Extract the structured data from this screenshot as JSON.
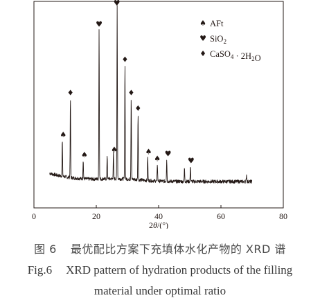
{
  "chart_data": {
    "type": "line",
    "title": "",
    "xlabel": "2θ/(°)",
    "ylabel": "",
    "xlim": [
      0,
      80
    ],
    "xticks": [
      0,
      20,
      40,
      60,
      80
    ],
    "grid": false,
    "legend_position": "top-right",
    "legend": [
      {
        "symbol": "spade",
        "label": "AFt"
      },
      {
        "symbol": "heart",
        "label": "SiO2"
      },
      {
        "symbol": "diamond",
        "label": "CaSO4 · 2H2O"
      }
    ],
    "peaks": [
      {
        "x": 9.1,
        "intensity": 0.21,
        "phase": "AFt"
      },
      {
        "x": 11.7,
        "intensity": 0.46,
        "phase": "CaSO4 · 2H2O"
      },
      {
        "x": 15.8,
        "intensity": 0.11,
        "phase": "AFt"
      },
      {
        "x": 20.9,
        "intensity": 0.87,
        "phase": "SiO2"
      },
      {
        "x": 23.5,
        "intensity": 0.14,
        "phase": ""
      },
      {
        "x": 25.5,
        "intensity": 0.15,
        "phase": "AFt"
      },
      {
        "x": 26.7,
        "intensity": 1.0,
        "phase": "SiO2"
      },
      {
        "x": 29.2,
        "intensity": 0.67,
        "phase": "CaSO4 · 2H2O"
      },
      {
        "x": 31.2,
        "intensity": 0.48,
        "phase": "CaSO4 · 2H2O"
      },
      {
        "x": 33.4,
        "intensity": 0.39,
        "phase": "CaSO4 · 2H2O"
      },
      {
        "x": 36.5,
        "intensity": 0.14,
        "phase": "AFt"
      },
      {
        "x": 39.6,
        "intensity": 0.1,
        "phase": "AFt"
      },
      {
        "x": 42.6,
        "intensity": 0.13,
        "phase": "SiO2"
      },
      {
        "x": 48.3,
        "intensity": 0.08,
        "phase": ""
      },
      {
        "x": 50.2,
        "intensity": 0.09,
        "phase": "SiO2"
      },
      {
        "x": 68.2,
        "intensity": 0.04,
        "phase": ""
      }
    ],
    "markers": [
      {
        "x": 9.4,
        "symbol": "spade"
      },
      {
        "x": 11.7,
        "symbol": "diamond"
      },
      {
        "x": 16.2,
        "symbol": "spade"
      },
      {
        "x": 20.9,
        "symbol": "heart"
      },
      {
        "x": 25.8,
        "symbol": "spade"
      },
      {
        "x": 26.6,
        "symbol": "heart",
        "stack": "diamond"
      },
      {
        "x": 29.2,
        "symbol": "diamond"
      },
      {
        "x": 31.2,
        "symbol": "diamond"
      },
      {
        "x": 33.4,
        "symbol": "diamond"
      },
      {
        "x": 36.8,
        "symbol": "spade"
      },
      {
        "x": 39.6,
        "symbol": "spade"
      },
      {
        "x": 43.0,
        "symbol": "heart"
      },
      {
        "x": 50.4,
        "symbol": "heart"
      }
    ]
  },
  "captions": {
    "zh_num": "图 6",
    "zh_text": "最优配比方案下充填体水化产物的 XRD 谱",
    "en_num": "Fig.6",
    "en_line1": "XRD pattern of hydration products of the filling",
    "en_line2": "material under optimal ratio"
  }
}
